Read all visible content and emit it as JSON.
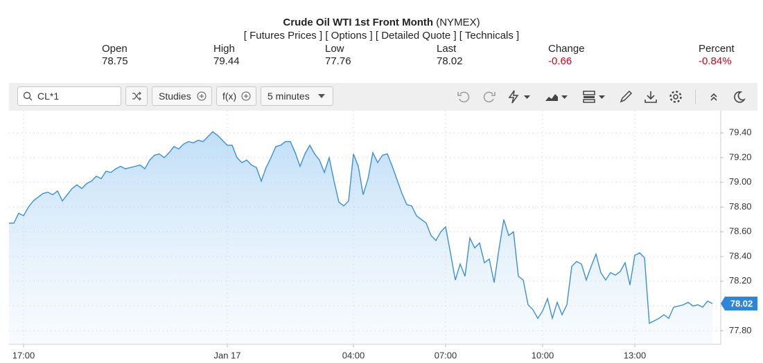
{
  "header": {
    "title": "Crude Oil WTI 1st Front Month",
    "exchange": "(NYMEX)",
    "links": [
      "[ Futures Prices ]",
      "[ Options ]",
      "[ Detailed Quote ]",
      "[ Technicals ]"
    ]
  },
  "quote": [
    {
      "label": "Open",
      "value": "78.75"
    },
    {
      "label": "High",
      "value": "79.44"
    },
    {
      "label": "Low",
      "value": "77.76"
    },
    {
      "label": "Last",
      "value": "78.02"
    },
    {
      "label": "Change",
      "value": "-0.66"
    },
    {
      "label": "Percent",
      "value": "-0.84%"
    }
  ],
  "toolbar": {
    "symbol": "CL*1",
    "studies": "Studies",
    "function": "f(x)",
    "interval": "5 minutes"
  },
  "chart_data": {
    "type": "area",
    "color": "#3a8fd8",
    "grid": true,
    "categories": [
      null,
      null,
      null,
      "17:00",
      null,
      null,
      null,
      null,
      null,
      null,
      null,
      null,
      null,
      null,
      null,
      null,
      null,
      null,
      null,
      null,
      null,
      null,
      null,
      null,
      null,
      null,
      null,
      null,
      null,
      null,
      null,
      null,
      null,
      null,
      null,
      null,
      null,
      null,
      null,
      null,
      null,
      null,
      null,
      null,
      null,
      "Jan 17",
      null,
      null,
      null,
      null,
      null,
      null,
      null,
      null,
      null,
      null,
      null,
      null,
      null,
      null,
      null,
      null,
      null,
      null,
      null,
      null,
      null,
      null,
      null,
      null,
      null,
      "04:00",
      null,
      null,
      null,
      null,
      null,
      null,
      null,
      null,
      null,
      null,
      null,
      null,
      null,
      null,
      null,
      null,
      null,
      null,
      "07:00",
      null,
      null,
      null,
      null,
      null,
      null,
      null,
      null,
      null,
      null,
      null,
      null,
      null,
      null,
      null,
      null,
      null,
      null,
      null,
      "10:00",
      null,
      null,
      null,
      null,
      null,
      null,
      null,
      null,
      null,
      null,
      null,
      null,
      null,
      null,
      null,
      null,
      null,
      null,
      "13:00",
      null,
      null,
      null,
      null,
      null,
      null,
      null,
      null,
      null,
      null,
      null,
      null,
      null,
      null,
      null,
      null
    ],
    "values": [
      78.67,
      78.67,
      78.75,
      78.73,
      78.8,
      78.85,
      78.88,
      78.91,
      78.92,
      78.9,
      78.93,
      78.85,
      78.9,
      78.95,
      78.98,
      78.95,
      78.99,
      79.01,
      79.05,
      79.03,
      79.09,
      79.08,
      79.11,
      79.13,
      79.11,
      79.12,
      79.13,
      79.14,
      79.11,
      79.18,
      79.22,
      79.23,
      79.2,
      79.24,
      79.29,
      79.27,
      79.31,
      79.33,
      79.32,
      79.34,
      79.33,
      79.37,
      79.41,
      79.38,
      79.34,
      79.3,
      79.3,
      79.2,
      79.16,
      79.18,
      79.14,
      79.12,
      79.01,
      79.12,
      79.2,
      79.29,
      79.3,
      79.33,
      79.33,
      79.24,
      79.13,
      79.23,
      79.3,
      79.23,
      79.18,
      79.08,
      79.2,
      79.01,
      78.84,
      78.81,
      78.85,
      79.23,
      79.13,
      78.9,
      79.03,
      79.24,
      79.16,
      79.22,
      79.23,
      79.13,
      79.02,
      78.91,
      78.82,
      78.81,
      78.73,
      78.7,
      78.67,
      78.57,
      78.53,
      78.6,
      78.64,
      78.43,
      78.21,
      78.34,
      78.24,
      78.55,
      78.47,
      78.51,
      78.35,
      78.38,
      78.19,
      78.46,
      78.7,
      78.57,
      78.6,
      78.24,
      78.21,
      78.01,
      77.97,
      77.9,
      77.96,
      78.06,
      77.9,
      78.03,
      77.93,
      78.01,
      78.32,
      78.36,
      78.34,
      78.21,
      78.32,
      78.42,
      78.27,
      78.21,
      78.27,
      78.25,
      78.28,
      78.35,
      78.17,
      78.41,
      78.43,
      78.39,
      77.86,
      77.88,
      77.9,
      77.93,
      77.9,
      77.99,
      78.0,
      78.01,
      78.03,
      78.0,
      78.01,
      77.99,
      78.04,
      78.02
    ],
    "ylim": [
      77.69,
      79.58
    ],
    "yticks": [
      {
        "value": 79.4,
        "label": "79.40"
      },
      {
        "value": 79.2,
        "label": "79.20"
      },
      {
        "value": 79.0,
        "label": "79.00"
      },
      {
        "value": 78.8,
        "label": "78.80"
      },
      {
        "value": 78.6,
        "label": "78.60"
      },
      {
        "value": 78.4,
        "label": "78.40"
      },
      {
        "value": 78.2,
        "label": "78.20"
      },
      {
        "value": 78.0,
        "label": "78.00"
      },
      {
        "value": 77.8,
        "label": "77.80"
      }
    ]
  }
}
